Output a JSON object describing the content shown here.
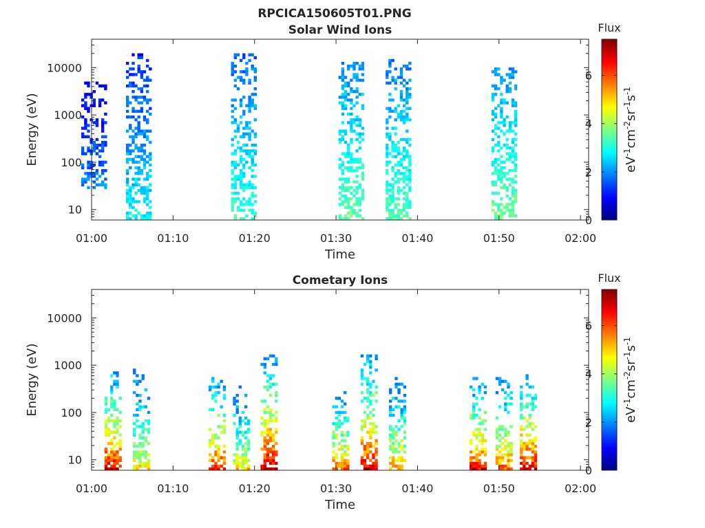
{
  "figure": {
    "title": "RPCICA150605T01.PNG"
  },
  "chart_data": [
    {
      "type": "heatmap",
      "title": "Solar Wind Ions",
      "xlabel": "Time",
      "ylabel": "Energy (eV)",
      "yscale": "log",
      "ylim": [
        6,
        40000
      ],
      "xlim": [
        "01:00",
        "02:01"
      ],
      "xticks": [
        "01:00",
        "01:10",
        "01:20",
        "01:30",
        "01:40",
        "01:50",
        "02:00"
      ],
      "yticks": [
        "10",
        "100",
        "1000",
        "10000"
      ],
      "colorbar": {
        "title": "Flux",
        "label": "eV-1cm-2sr-1s-1",
        "min": 0,
        "max": 7.5,
        "ticks": [
          "0",
          "2",
          "4",
          "6"
        ]
      },
      "bursts": [
        {
          "t": 0.2,
          "emin": 30,
          "emax": 5000,
          "peak": 2.3
        },
        {
          "t": 5.7,
          "emin": 6,
          "emax": 20000,
          "peak": 2.8
        },
        {
          "t": 18.6,
          "emin": 6,
          "emax": 20000,
          "peak": 3.2
        },
        {
          "t": 31.8,
          "emin": 6,
          "emax": 15000,
          "peak": 3.5
        },
        {
          "t": 37.6,
          "emin": 6,
          "emax": 15000,
          "peak": 3.4
        },
        {
          "t": 50.6,
          "emin": 6,
          "emax": 10000,
          "peak": 3.6
        }
      ]
    },
    {
      "type": "heatmap",
      "title": "Cometary Ions",
      "xlabel": "Time",
      "ylabel": "Energy (eV)",
      "yscale": "log",
      "ylim": [
        6,
        40000
      ],
      "xlim": [
        "01:00",
        "02:01"
      ],
      "xticks": [
        "01:00",
        "01:10",
        "01:20",
        "01:30",
        "01:40",
        "01:50",
        "02:00"
      ],
      "yticks": [
        "10",
        "100",
        "1000",
        "10000"
      ],
      "colorbar": {
        "title": "Flux",
        "label": "eV-1cm-2sr-1s-1",
        "min": 0,
        "max": 7.5,
        "ticks": [
          "0",
          "2",
          "4",
          "6"
        ]
      },
      "bursts": [
        {
          "t": 2.5,
          "emin": 6,
          "emax": 800,
          "peak": 7.0
        },
        {
          "t": 6.0,
          "emin": 6,
          "emax": 800,
          "peak": 5.0
        },
        {
          "t": 15.3,
          "emin": 6,
          "emax": 600,
          "peak": 6.5
        },
        {
          "t": 18.3,
          "emin": 6,
          "emax": 400,
          "peak": 5.0
        },
        {
          "t": 21.7,
          "emin": 6,
          "emax": 1500,
          "peak": 7.2
        },
        {
          "t": 30.5,
          "emin": 6,
          "emax": 300,
          "peak": 6.0
        },
        {
          "t": 34.0,
          "emin": 6,
          "emax": 1500,
          "peak": 7.0
        },
        {
          "t": 37.5,
          "emin": 6,
          "emax": 500,
          "peak": 5.5
        },
        {
          "t": 47.4,
          "emin": 6,
          "emax": 500,
          "peak": 6.8
        },
        {
          "t": 50.6,
          "emin": 6,
          "emax": 500,
          "peak": 6.0
        },
        {
          "t": 53.6,
          "emin": 6,
          "emax": 700,
          "peak": 7.0
        }
      ]
    }
  ]
}
